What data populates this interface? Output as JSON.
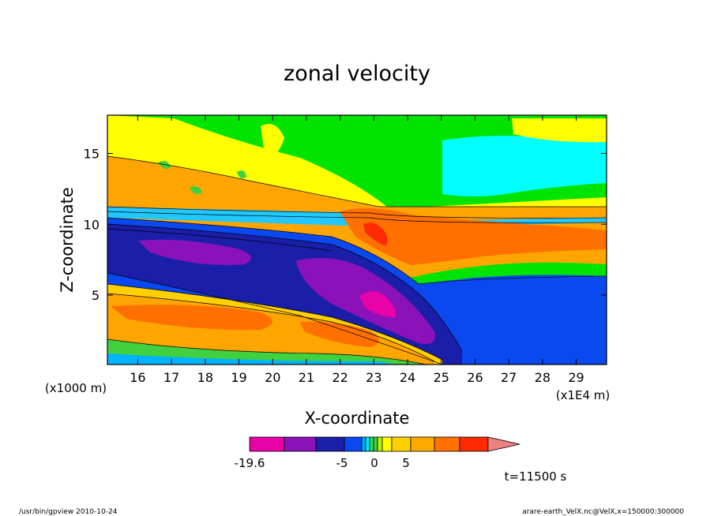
{
  "chart_data": {
    "type": "heatmap",
    "title": "zonal velocity",
    "xlabel": "X-coordinate",
    "ylabel": "Z-coordinate",
    "x_scale_label": "(x1E4 m)",
    "y_scale_label": "(x1000 m)",
    "x_ticks": [
      16,
      17,
      18,
      19,
      20,
      21,
      22,
      23,
      24,
      25,
      26,
      27,
      28,
      29
    ],
    "y_ticks": [
      5,
      10,
      15
    ],
    "xlim": [
      15.1,
      29.9
    ],
    "ylim": [
      0.1,
      17.7
    ],
    "colorbar": {
      "colors": [
        "#e800a8",
        "#8a12b8",
        "#1a1ea8",
        "#0a48f0",
        "#00a8ff",
        "#00e8ff",
        "#20e060",
        "#40d040",
        "#b8f000",
        "#ffff00",
        "#ffd000",
        "#ffaa00",
        "#ff7000",
        "#ff2a00",
        "#f08080"
      ],
      "labels": [
        "-19.6",
        "-5",
        "0",
        "5"
      ]
    },
    "time_label": "t=11500 s",
    "footer_left": "/usr/bin/gpview   2010-10-24",
    "footer_right": "arare-earth_VelX.nc@VelX,x=150000:300000"
  }
}
